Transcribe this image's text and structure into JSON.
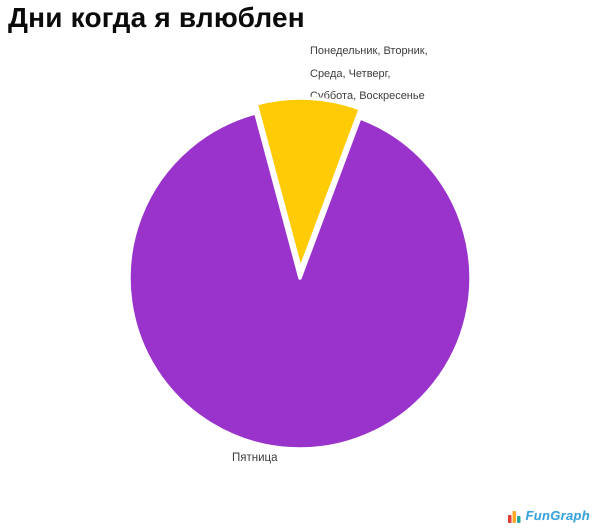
{
  "chart_data": {
    "type": "pie",
    "title": "Дни когда я влюблен",
    "legend_position": "labels outside slices",
    "background": "#FFFFFF",
    "slices": [
      {
        "name": "friday",
        "label": "Пятница",
        "percent": 90.1,
        "start_angle_deg": 20.5,
        "end_angle_deg": 345,
        "color": "#9933CC",
        "exploded": false
      },
      {
        "name": "other-days",
        "label": "Понедельник, Вторник, Среда, Четверг, Суббота, Воскресенье",
        "percent": 9.9,
        "start_angle_deg": -15,
        "end_angle_deg": 20.5,
        "color": "#FFCB05",
        "exploded": true
      }
    ]
  },
  "title": "Дни когда я влюблен",
  "labels": {
    "other_days_lines": [
      "Понедельник, Вторник,",
      "Среда, Четверг,",
      "Суббота, Воскресенье"
    ],
    "friday": "Пятница"
  },
  "watermark": {
    "text": "FunGraph",
    "text_color": "#3AA3DC",
    "icon_colors": [
      "#E53935",
      "#FFA726",
      "#26A69A"
    ]
  }
}
